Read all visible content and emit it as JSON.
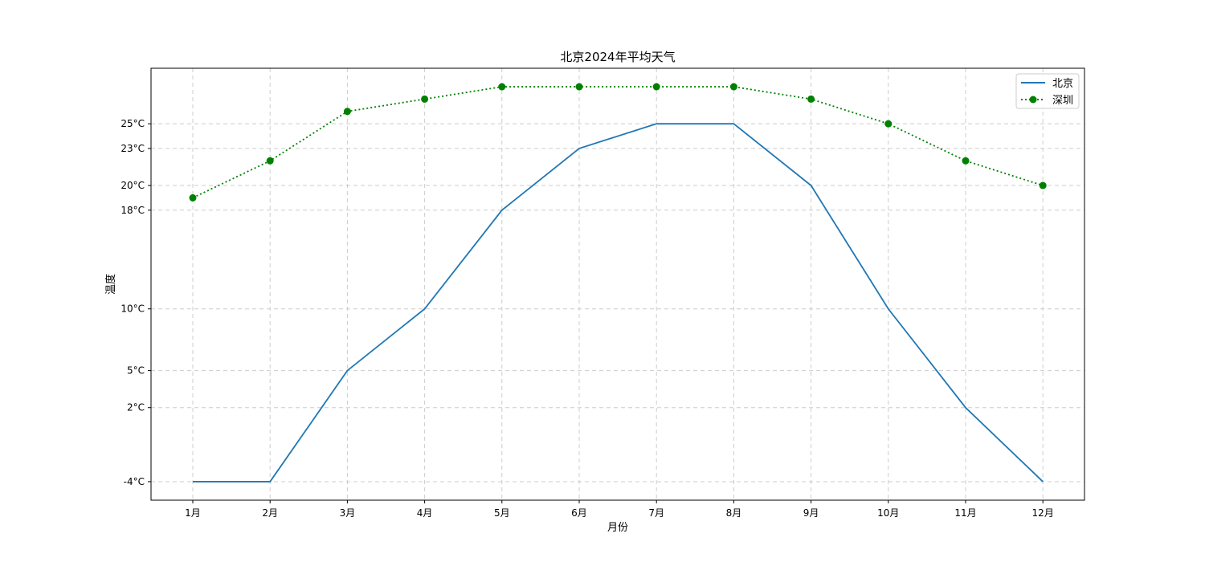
{
  "chart_data": {
    "type": "line",
    "title": "北京2024年平均天气",
    "xlabel": "月份",
    "ylabel": "温度",
    "categories": [
      "1月",
      "2月",
      "3月",
      "4月",
      "5月",
      "6月",
      "7月",
      "8月",
      "9月",
      "10月",
      "11月",
      "12月"
    ],
    "ylim": [
      -5.5,
      29.5
    ],
    "yticks": [
      {
        "value": -4,
        "label": "-4°C"
      },
      {
        "value": 2,
        "label": "2°C"
      },
      {
        "value": 5,
        "label": "5°C"
      },
      {
        "value": 10,
        "label": "10°C"
      },
      {
        "value": 18,
        "label": "18°C"
      },
      {
        "value": 20,
        "label": "20°C"
      },
      {
        "value": 23,
        "label": "23°C"
      },
      {
        "value": 25,
        "label": "25°C"
      }
    ],
    "grid": true,
    "legend_position": "top-right",
    "series": [
      {
        "name": "北京",
        "values": [
          -4,
          -4,
          5,
          10,
          18,
          23,
          25,
          25,
          20,
          10,
          2,
          -4
        ],
        "color": "#1f77b4",
        "style": "solid",
        "marker": "none"
      },
      {
        "name": "深圳",
        "values": [
          19,
          22,
          26,
          27,
          28,
          28,
          28,
          28,
          27,
          25,
          22,
          20
        ],
        "color": "#008000",
        "style": "dotted",
        "marker": "circle"
      }
    ]
  }
}
